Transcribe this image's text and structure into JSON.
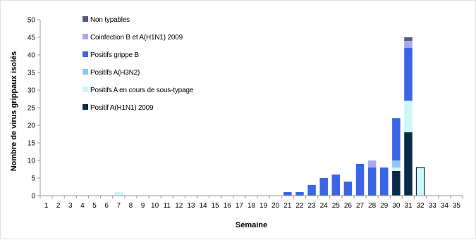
{
  "chart_data": {
    "type": "bar",
    "stacked": true,
    "title": "",
    "xlabel": "Semaine",
    "ylabel": "Nombre de virus grippaux isolés",
    "ylim": [
      0,
      50
    ],
    "yticks": [
      0,
      5,
      10,
      15,
      20,
      25,
      30,
      35,
      40,
      45,
      50
    ],
    "grid": false,
    "legend_position": "top-left",
    "categories": [
      "1",
      "2",
      "3",
      "4",
      "5",
      "6",
      "7",
      "8",
      "9",
      "10",
      "11",
      "12",
      "13",
      "14",
      "15",
      "16",
      "17",
      "18",
      "19",
      "20",
      "21",
      "22",
      "23",
      "24",
      "25",
      "26",
      "27",
      "28",
      "29",
      "30",
      "31",
      "32",
      "33",
      "34",
      "35"
    ],
    "series": [
      {
        "name": "Positif A(H1N1) 2009",
        "color": "#0a2a4a",
        "values": [
          0,
          0,
          0,
          0,
          0,
          0,
          0,
          0,
          0,
          0,
          0,
          0,
          0,
          0,
          0,
          0,
          0,
          0,
          0,
          0,
          0,
          0,
          0,
          0,
          0,
          0,
          0,
          0,
          0,
          7,
          18,
          0,
          0,
          0,
          0
        ]
      },
      {
        "name": "Positifs A en cours de sous-typage",
        "color": "#ccf6fa",
        "values": [
          0,
          0,
          0,
          0,
          0,
          0,
          1,
          0,
          0,
          0,
          0,
          0,
          0,
          0,
          0,
          0,
          0,
          0,
          0,
          0,
          0,
          0,
          0,
          0,
          0,
          0,
          0,
          0,
          0,
          1,
          9,
          8,
          0,
          0,
          0
        ]
      },
      {
        "name": "Positifs A(H3N2)",
        "color": "#8ec8ec",
        "values": [
          0,
          0,
          0,
          0,
          0,
          0,
          0,
          0,
          0,
          0,
          0,
          0,
          0,
          0,
          0,
          0,
          0,
          0,
          0,
          0,
          0,
          0,
          0,
          0,
          0,
          0,
          0,
          0,
          0,
          2,
          0,
          0,
          0,
          0,
          0
        ]
      },
      {
        "name": "Positifs grippe B",
        "color": "#3a66e6",
        "values": [
          0,
          0,
          0,
          0,
          0,
          0,
          0,
          0,
          0,
          0,
          0,
          0,
          0,
          0,
          0,
          0,
          0,
          0,
          0,
          0,
          1,
          1,
          3,
          5,
          6,
          4,
          9,
          8,
          8,
          12,
          15,
          0,
          0,
          0,
          0
        ]
      },
      {
        "name": "Coinfection B et A(H1N1) 2009",
        "color": "#a9a9ee",
        "values": [
          0,
          0,
          0,
          0,
          0,
          0,
          0,
          0,
          0,
          0,
          0,
          0,
          0,
          0,
          0,
          0,
          0,
          0,
          0,
          0,
          0,
          0,
          0,
          0,
          0,
          0,
          0,
          2,
          0,
          0,
          2,
          0,
          0,
          0,
          0
        ]
      },
      {
        "name": "Non typables",
        "color": "#505a80",
        "values": [
          0,
          0,
          0,
          0,
          0,
          0,
          0,
          0,
          0,
          0,
          0,
          0,
          0,
          0,
          0,
          0,
          0,
          0,
          0,
          0,
          0,
          0,
          0,
          0,
          0,
          0,
          0,
          0,
          0,
          0,
          1,
          0,
          0,
          0,
          0
        ]
      }
    ],
    "outlined_bars": [
      "32"
    ]
  }
}
